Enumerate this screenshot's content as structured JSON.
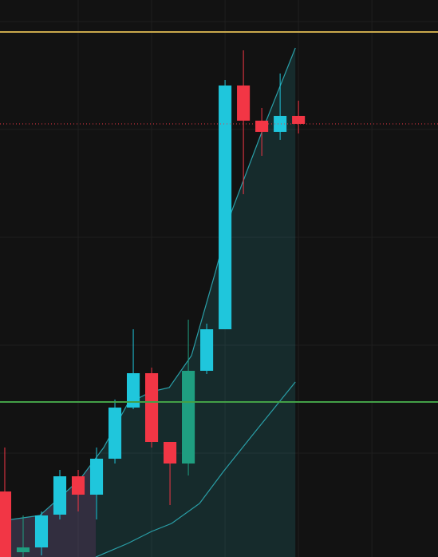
{
  "chart_data": {
    "type": "candlestick",
    "xlim": [
      -0.26,
      23.6
    ],
    "ylim": [
      0,
      697
    ],
    "grid": true,
    "xticks": [
      4,
      8,
      12,
      16,
      20
    ],
    "yticks": [
      130,
      265,
      400,
      535,
      670
    ],
    "candles": {
      "open": [
        82,
        6,
        12,
        53,
        101,
        78,
        123,
        187,
        230,
        144,
        117,
        233,
        285,
        590,
        546,
        532,
        552
      ],
      "high": [
        137,
        52,
        57,
        109,
        109,
        137,
        197,
        285,
        237,
        144,
        297,
        292,
        597,
        634,
        562,
        605,
        571
      ],
      "low": [
        0,
        0,
        2,
        47,
        57,
        47,
        117,
        185,
        137,
        65,
        102,
        229,
        285,
        454,
        502,
        522,
        530
      ],
      "close": [
        0,
        12,
        52,
        101,
        78,
        123,
        187,
        230,
        144,
        117,
        233,
        285,
        590,
        546,
        532,
        552,
        542
      ],
      "colors": [
        "#f23645",
        "#1f9e80",
        "#1fc6dc",
        "#1fc6dc",
        "#f23645",
        "#1fc6dc",
        "#1fc6dc",
        "#1fc6dc",
        "#f23645",
        "#f23645",
        "#1f9e80",
        "#1fc6dc",
        "#1fc6dc",
        "#f23645",
        "#f23645",
        "#1fc6dc",
        "#f23645"
      ]
    },
    "series": [
      {
        "color": "#2a9fa8",
        "x": [
          -0.26,
          1.91,
          4.09,
          5.39,
          6.7,
          8,
          8.96,
          10.17,
          11.48,
          12.35,
          14.09,
          15.83
        ],
        "values": [
          45,
          52,
          97,
          137,
          192,
          207,
          212,
          252,
          357,
          432,
          537,
          637
        ]
      },
      {
        "color": "#2a9fa8",
        "x": [
          4.96,
          6.7,
          8,
          9.09,
          10.61,
          11.91,
          13.65,
          15.83
        ],
        "values": [
          0,
          17,
          32,
          42,
          67,
          107,
          157,
          219
        ]
      }
    ],
    "levels": [
      {
        "value": 657,
        "color": "#c9a84c",
        "style": "solid"
      },
      {
        "value": 194,
        "color": "#43a047",
        "style": "solid"
      },
      {
        "value": 542,
        "color": "#f23645",
        "style": "dotted"
      }
    ]
  }
}
